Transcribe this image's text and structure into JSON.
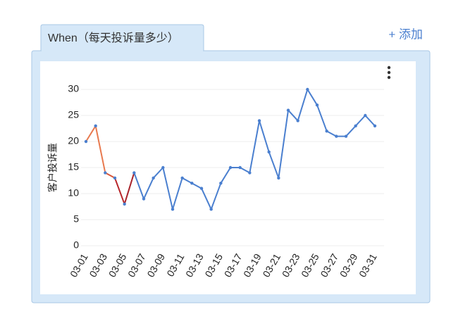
{
  "tab": {
    "label": "When（每天投诉量多少）"
  },
  "add_button": "+ 添加",
  "chart_data": {
    "type": "line",
    "ylabel": "客户投诉量",
    "categories": [
      "03-01",
      null,
      "03-03",
      null,
      "03-05",
      null,
      "03-07",
      null,
      "03-09",
      null,
      "03-11",
      null,
      "03-13",
      null,
      "03-15",
      null,
      "03-17",
      null,
      "03-19",
      null,
      "03-21",
      null,
      "03-23",
      null,
      "03-25",
      null,
      "03-27",
      null,
      "03-29",
      null,
      "03-31"
    ],
    "series": [
      {
        "color": "#4a7fcf",
        "segment_colors": [
          "#e8794e",
          "#e8794e",
          "#d9583a",
          "#b8262a",
          "#a8232b"
        ],
        "values": [
          20,
          23,
          14,
          13,
          8,
          14,
          9,
          13,
          15,
          7,
          13,
          12,
          11,
          7,
          12,
          15,
          15,
          14,
          24,
          18,
          13,
          26,
          24,
          30,
          27,
          22,
          21,
          21,
          23,
          25,
          23
        ]
      }
    ],
    "ylim": [
      0,
      30
    ],
    "yticks": [
      0,
      5,
      10,
      15,
      20,
      25,
      30
    ],
    "grid": true
  }
}
